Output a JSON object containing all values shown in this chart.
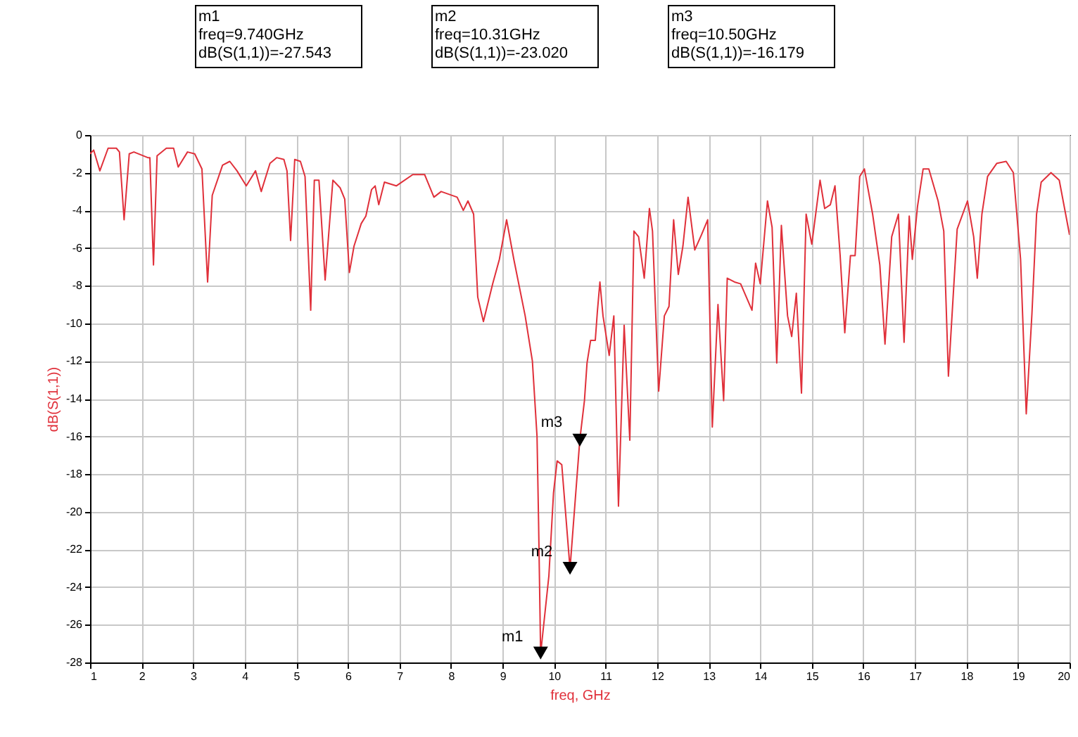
{
  "chart_data": {
    "type": "line",
    "xlabel": "freq, GHz",
    "ylabel": "dB(S(1,1))",
    "xlim": [
      1,
      20
    ],
    "xticks": [
      1,
      2,
      3,
      4,
      5,
      6,
      7,
      8,
      9,
      10,
      11,
      12,
      13,
      14,
      15,
      16,
      17,
      18,
      19,
      20
    ],
    "ylim": [
      -28,
      0
    ],
    "yticks": [
      0,
      -2,
      -4,
      -6,
      -8,
      -10,
      -12,
      -14,
      -16,
      -18,
      -20,
      -22,
      -24,
      -26,
      -28
    ],
    "grid": true,
    "x": [
      1.0,
      1.07,
      1.19,
      1.35,
      1.51,
      1.57,
      1.66,
      1.76,
      1.85,
      2.12,
      2.16,
      2.23,
      2.3,
      2.48,
      2.62,
      2.71,
      2.89,
      3.03,
      3.17,
      3.28,
      3.37,
      3.57,
      3.71,
      3.85,
      4.03,
      4.21,
      4.32,
      4.49,
      4.62,
      4.76,
      4.82,
      4.89,
      4.97,
      5.08,
      5.17,
      5.28,
      5.35,
      5.44,
      5.56,
      5.71,
      5.85,
      5.94,
      6.03,
      6.12,
      6.26,
      6.35,
      6.46,
      6.53,
      6.6,
      6.71,
      6.94,
      7.26,
      7.49,
      7.67,
      7.81,
      8.12,
      8.24,
      8.33,
      8.44,
      8.52,
      8.63,
      8.81,
      8.94,
      9.08,
      9.22,
      9.44,
      9.58,
      9.67,
      9.7,
      9.74,
      9.9,
      9.99,
      10.06,
      10.15,
      10.31,
      10.5,
      10.59,
      10.64,
      10.71,
      10.8,
      10.84,
      10.89,
      10.95,
      11.07,
      11.16,
      11.25,
      11.36,
      11.47,
      11.55,
      11.64,
      11.75,
      11.85,
      11.91,
      12.03,
      12.14,
      12.23,
      12.32,
      12.41,
      12.5,
      12.6,
      12.73,
      12.86,
      12.98,
      13.07,
      13.18,
      13.29,
      13.36,
      13.5,
      13.62,
      13.73,
      13.84,
      13.91,
      14.0,
      14.14,
      14.23,
      14.32,
      14.41,
      14.53,
      14.61,
      14.7,
      14.8,
      14.89,
      15.0,
      15.16,
      15.25,
      15.36,
      15.45,
      15.55,
      15.64,
      15.75,
      15.84,
      15.93,
      16.02,
      16.18,
      16.32,
      16.42,
      16.55,
      16.68,
      16.79,
      16.89,
      16.95,
      17.05,
      17.16,
      17.27,
      17.45,
      17.56,
      17.65,
      17.82,
      18.02,
      18.14,
      18.21,
      18.3,
      18.41,
      18.59,
      18.77,
      18.91,
      19.05,
      19.16,
      19.27,
      19.36,
      19.45,
      19.64,
      19.8,
      20.0
    ],
    "series": [
      {
        "color": "#e0303a",
        "values": [
          -1.0,
          -0.8,
          -1.9,
          -0.7,
          -0.7,
          -0.9,
          -4.5,
          -1.0,
          -0.9,
          -1.2,
          -1.2,
          -6.9,
          -1.1,
          -0.7,
          -0.7,
          -1.7,
          -0.9,
          -1.0,
          -1.8,
          -7.8,
          -3.2,
          -1.6,
          -1.4,
          -1.9,
          -2.7,
          -1.9,
          -3.0,
          -1.5,
          -1.2,
          -1.3,
          -1.9,
          -5.6,
          -1.3,
          -1.4,
          -2.2,
          -9.3,
          -2.4,
          -2.4,
          -7.7,
          -2.4,
          -2.8,
          -3.4,
          -7.3,
          -5.9,
          -4.7,
          -4.3,
          -2.9,
          -2.7,
          -3.7,
          -2.5,
          -2.7,
          -2.1,
          -2.1,
          -3.3,
          -3.0,
          -3.3,
          -4.0,
          -3.5,
          -4.2,
          -8.6,
          -9.9,
          -7.9,
          -6.6,
          -4.5,
          -6.6,
          -9.6,
          -12.0,
          -16.0,
          -20.5,
          -27.543,
          -23.4,
          -19.0,
          -17.3,
          -17.5,
          -23.02,
          -16.179,
          -14.1,
          -12.1,
          -10.9,
          -10.9,
          -9.4,
          -7.8,
          -9.6,
          -11.7,
          -9.6,
          -19.7,
          -10.1,
          -16.2,
          -5.1,
          -5.4,
          -7.6,
          -3.9,
          -5.1,
          -13.6,
          -9.6,
          -9.1,
          -4.5,
          -7.4,
          -5.9,
          -3.3,
          -6.1,
          -5.3,
          -4.5,
          -15.5,
          -9.0,
          -14.1,
          -7.6,
          -7.8,
          -7.9,
          -8.6,
          -9.3,
          -6.8,
          -7.9,
          -3.5,
          -4.9,
          -12.1,
          -4.8,
          -9.6,
          -10.7,
          -8.4,
          -13.7,
          -4.2,
          -5.8,
          -2.4,
          -3.9,
          -3.7,
          -2.7,
          -6.4,
          -10.5,
          -6.4,
          -6.4,
          -2.2,
          -1.8,
          -4.2,
          -6.9,
          -11.1,
          -5.4,
          -4.2,
          -11.0,
          -4.3,
          -6.6,
          -3.8,
          -1.8,
          -1.8,
          -3.5,
          -5.1,
          -12.8,
          -5.0,
          -3.5,
          -5.4,
          -7.6,
          -4.2,
          -2.2,
          -1.5,
          -1.4,
          -2.0,
          -6.6,
          -14.8,
          -9.5,
          -4.2,
          -2.5,
          -2.0,
          -2.4,
          -5.3
        ]
      },
      {
        "type": "scatter",
        "marker": "triangle",
        "color": "#000000",
        "x": [
          9.74,
          10.31,
          10.5
        ],
        "values": [
          -27.5,
          -23.0,
          -16.2
        ]
      }
    ],
    "annotations": [
      {
        "text": "m1",
        "x": 9.74,
        "y": -27.543
      },
      {
        "text": "m2",
        "x": 10.31,
        "y": -23.02
      },
      {
        "text": "m3",
        "x": 10.5,
        "y": -16.179
      },
      "m1\nfreq=9.740GHz\ndB(S(1,1))=-27.543",
      "m2\nfreq=10.31GHz\ndB(S(1,1))=-23.020",
      "m3\nfreq=10.50GHz\ndB(S(1,1))=-16.179"
    ]
  }
}
